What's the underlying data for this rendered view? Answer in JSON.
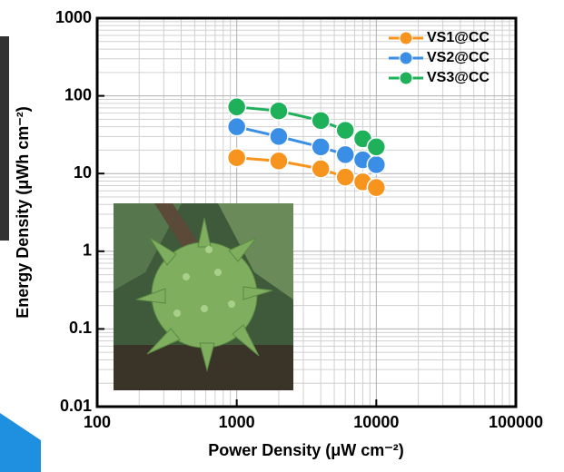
{
  "chart_data": {
    "type": "line",
    "xlabel": "Power Density (μW cm⁻²)",
    "ylabel": "Energy Density (μWh cm⁻²)",
    "x": [
      1000,
      2000,
      4000,
      6000,
      8000,
      10000
    ],
    "series": [
      {
        "name": "VS1@CC",
        "color": "#f7941d",
        "values": [
          16,
          14.5,
          11.5,
          9,
          7.8,
          6.6
        ]
      },
      {
        "name": "VS2@CC",
        "color": "#3a8ee6",
        "values": [
          40,
          30,
          22,
          17.5,
          15,
          13
        ]
      },
      {
        "name": "VS3@CC",
        "color": "#1fb05a",
        "values": [
          72,
          64,
          48,
          36,
          28,
          22
        ]
      }
    ],
    "xscale": "log",
    "yscale": "log",
    "xlim": [
      100,
      100000
    ],
    "xticks": [
      100,
      1000,
      10000,
      100000
    ],
    "ylim": [
      0.01,
      1000
    ],
    "yticks": [
      0.01,
      0.1,
      1,
      10,
      100,
      1000
    ],
    "grid": true,
    "legend": "upper right"
  }
}
